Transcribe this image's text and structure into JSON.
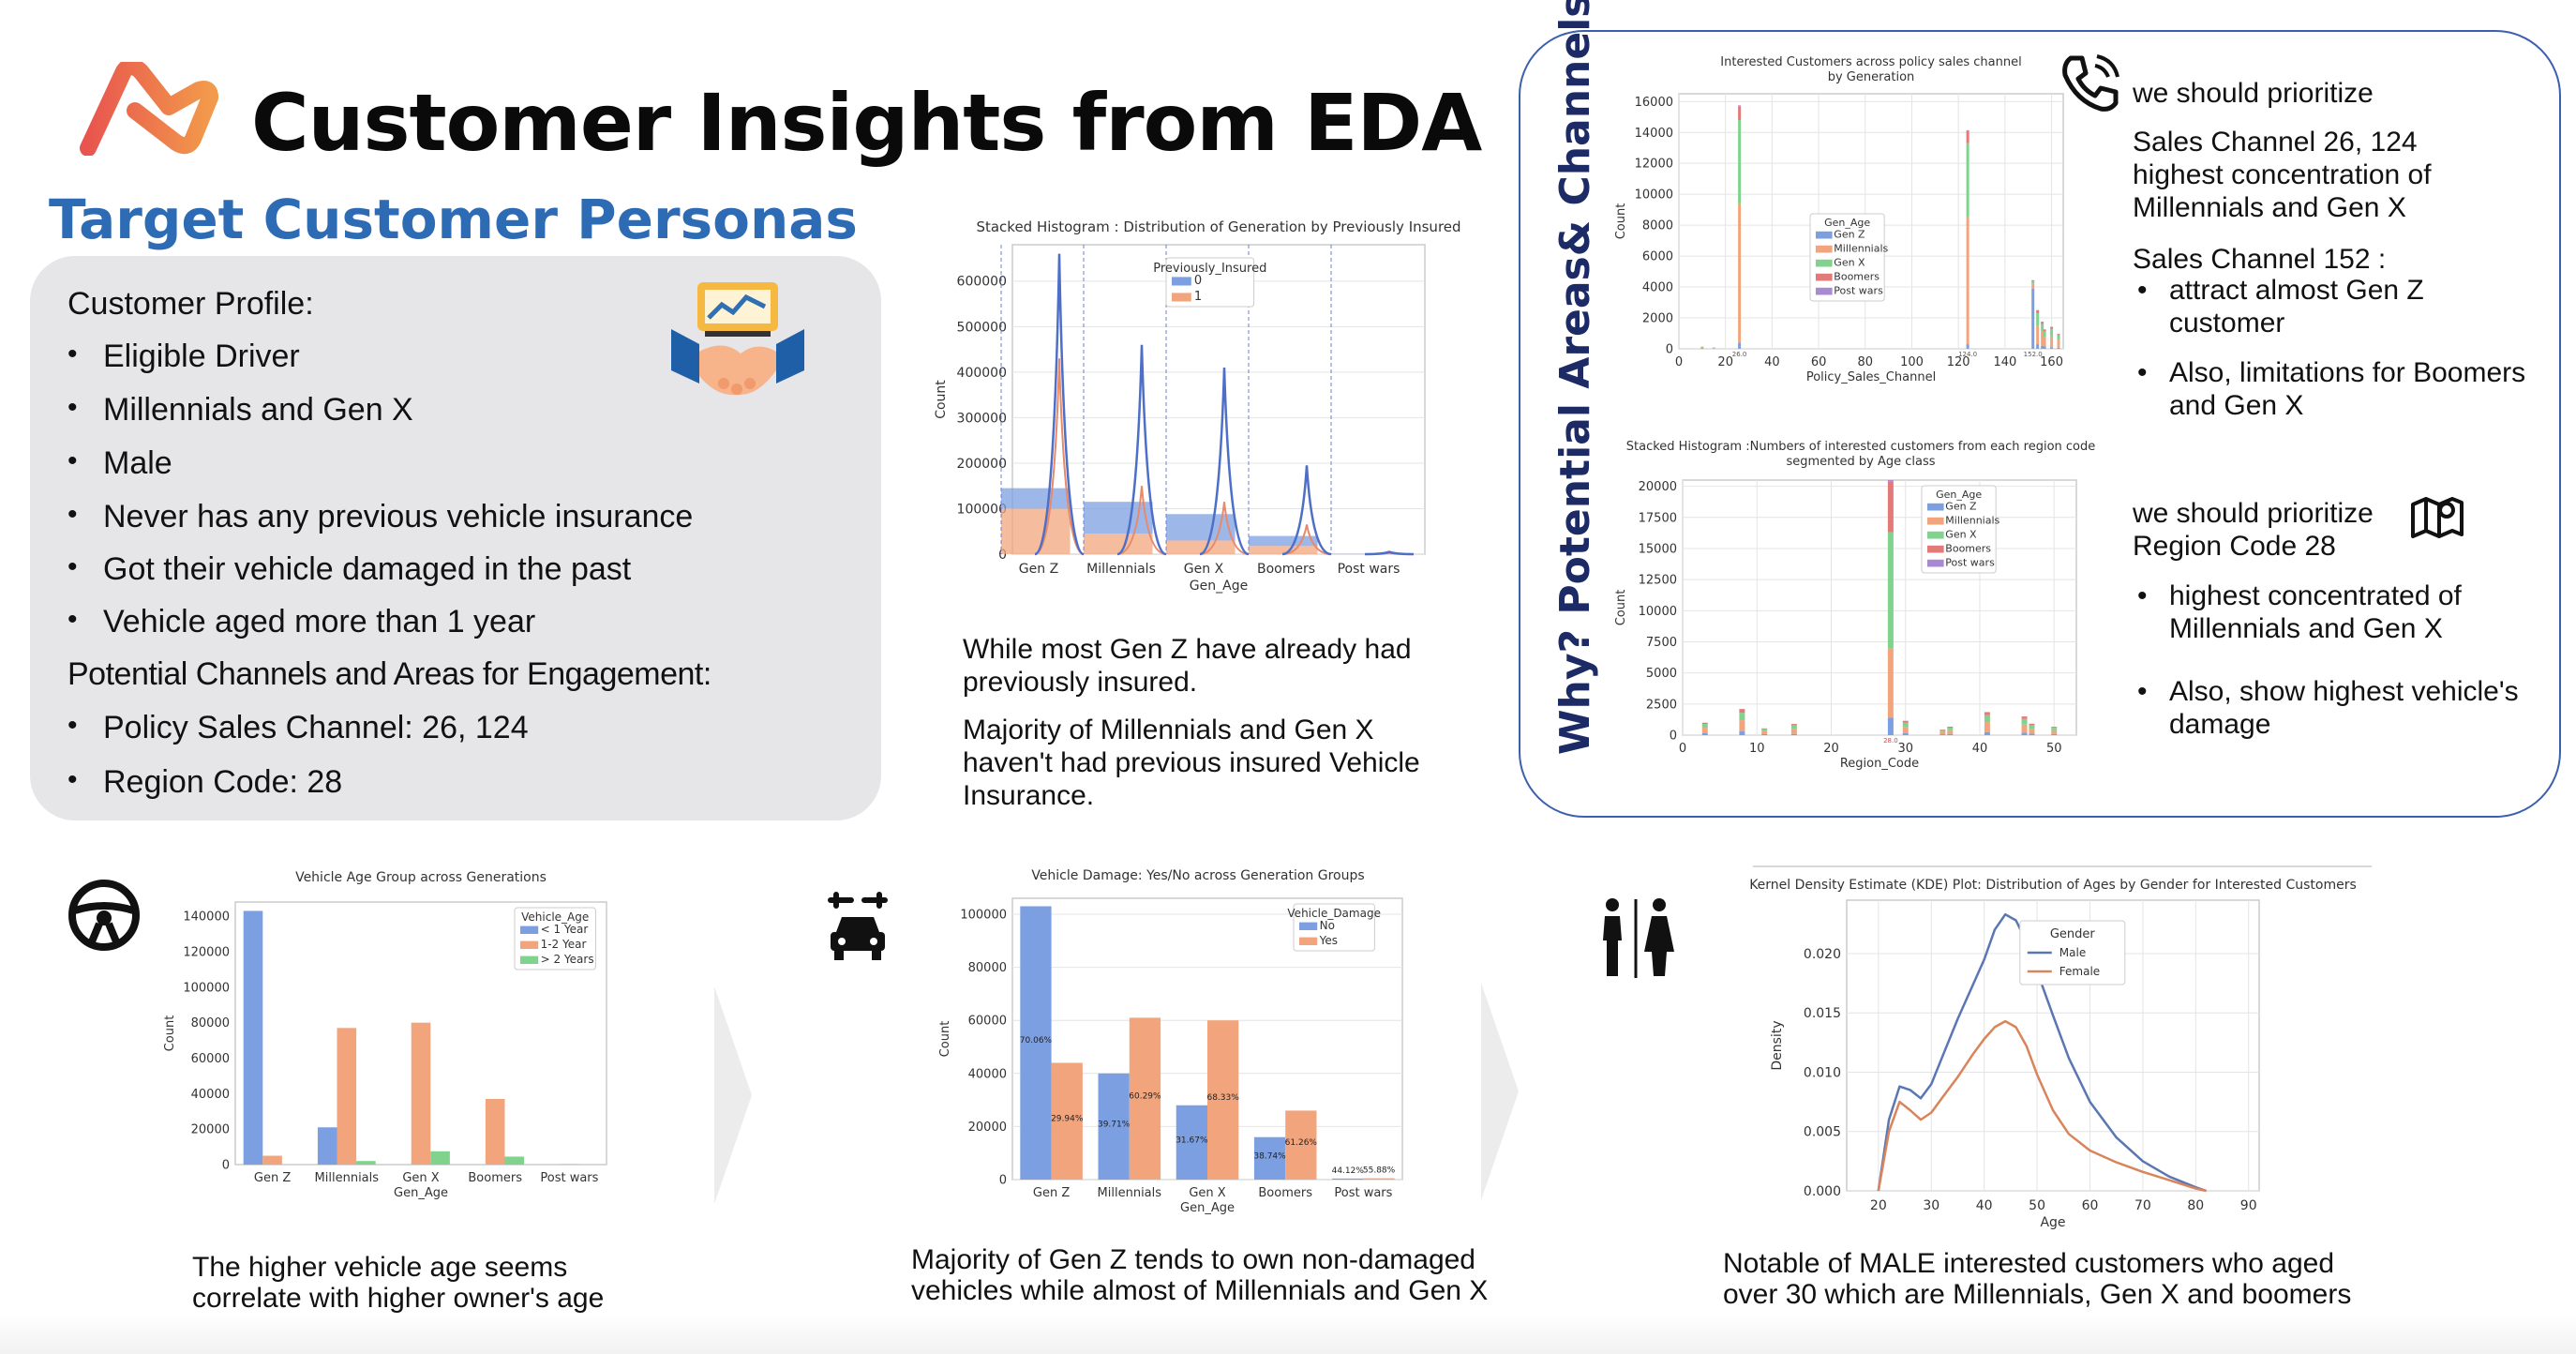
{
  "header": {
    "title": "Customer Insights from EDA",
    "subtitle": "Target Customer Personas"
  },
  "profile": {
    "heading": "Customer Profile:",
    "items": [
      "Eligible Driver",
      "Millennials and Gen X",
      "Male",
      "Never has any previous vehicle insurance",
      "Got their vehicle damaged in the past",
      "Vehicle aged more than 1 year"
    ],
    "channels_heading": "Potential Channels and Areas for Engagement:",
    "channel_items": [
      "Policy Sales Channel: 26, 124",
      "Region Code: 28"
    ]
  },
  "stacked_caption": {
    "p1": "While most Gen Z have already had previously insured.",
    "p2": "Majority of Millennials and Gen X haven't had previous insured Vehicle Insurance."
  },
  "right_panel": {
    "vertical_title": "Why? Potential Areas& Channels",
    "block1": {
      "heading": "we should prioritize",
      "line1": "Sales Channel 26, 124",
      "line2": "highest concentration of",
      "line3": "Millennials and Gen X",
      "sub_heading": "Sales Channel 152 :",
      "bullet1a": "attract almost Gen Z",
      "bullet1b": "customer",
      "bullet2a": "Also, limitations for Boomers",
      "bullet2b": "and Gen X"
    },
    "block2": {
      "heading": "we should prioritize",
      "line1": "Region Code 28",
      "bullet1a": "highest concentrated of",
      "bullet1b": "Millennials and Gen X",
      "bullet2a": "Also, show highest vehicle's",
      "bullet2b": "damage"
    }
  },
  "bottom": {
    "caption1a": "The higher vehicle age seems",
    "caption1b": "correlate with higher owner's age",
    "caption2a": "Majority of Gen Z tends to own non-damaged",
    "caption2b": "vehicles while almost of Millennials and Gen X",
    "caption3a": "Notable of MALE interested customers who aged",
    "caption3b": "over 30 which are Millennials, Gen X and boomers"
  },
  "colors": {
    "blue": "#7b9fe0",
    "orange": "#f2a57d",
    "green": "#7fd38c",
    "red": "#e37a7a",
    "purple": "#a989d4",
    "accent": "#2e6bb5",
    "frame": "#3c5fae"
  },
  "icons": [
    "logo-icon",
    "handshake-chart-icon",
    "phone-icon",
    "map-icon",
    "steering-wheel-icon",
    "car-repair-icon",
    "restroom-icon",
    "chevron-right-icon"
  ],
  "chart_data": [
    {
      "id": "gen-by-insured",
      "type": "bar",
      "title": "Stacked Histogram : Distribution of Generation by Previously Insured",
      "xlabel": "Gen_Age",
      "ylabel": "Count",
      "categories": [
        "Gen Z",
        "Millennials",
        "Gen X",
        "Boomers",
        "Post wars"
      ],
      "legend_title": "Previously_Insured",
      "series": [
        {
          "name": "0",
          "values": [
            45000,
            70000,
            58000,
            22000,
            500
          ]
        },
        {
          "name": "1",
          "values": [
            100000,
            45000,
            30000,
            18000,
            300
          ]
        }
      ],
      "yticks": [
        "0",
        "100000",
        "200000",
        "300000",
        "400000",
        "500000",
        "600000"
      ],
      "ylim": [
        0,
        680000
      ],
      "grid": true,
      "legend": "top-center"
    },
    {
      "id": "channel-by-gen",
      "type": "bar",
      "title": "Interested Customers across policy sales channel",
      "title2": "by Generation",
      "xlabel": "Policy_Sales_Channel",
      "ylabel": "Count",
      "legend_title": "Gen_Age",
      "legend": [
        "Gen Z",
        "Millennials",
        "Gen X",
        "Boomers",
        "Post wars"
      ],
      "xticks": [
        "0",
        "20",
        "40",
        "60",
        "80",
        "100",
        "120",
        "140",
        "160"
      ],
      "yticks": [
        "0",
        "2000",
        "4000",
        "6000",
        "8000",
        "10000",
        "12000",
        "14000",
        "16000"
      ],
      "xlim": [
        0,
        165
      ],
      "ylim": [
        0,
        16500
      ],
      "bars": [
        {
          "x": 26,
          "stack": [
            400,
            9000,
            5400,
            900,
            50
          ]
        },
        {
          "x": 124,
          "stack": [
            300,
            8200,
            4800,
            800,
            40
          ]
        },
        {
          "x": 152,
          "stack": [
            3900,
            300,
            150,
            80,
            10
          ]
        },
        {
          "x": 154,
          "stack": [
            300,
            1200,
            800,
            200,
            10
          ]
        },
        {
          "x": 156,
          "stack": [
            200,
            900,
            500,
            150,
            10
          ]
        },
        {
          "x": 157,
          "stack": [
            150,
            600,
            400,
            100,
            5
          ]
        },
        {
          "x": 160,
          "stack": [
            100,
            700,
            500,
            120,
            5
          ]
        },
        {
          "x": 163,
          "stack": [
            80,
            500,
            300,
            80,
            5
          ]
        },
        {
          "x": 10,
          "stack": [
            30,
            60,
            40,
            10,
            0
          ]
        },
        {
          "x": 15,
          "stack": [
            20,
            40,
            20,
            10,
            0
          ]
        }
      ],
      "minor_labels": [
        "26.0",
        "124.0",
        "152.0"
      ]
    },
    {
      "id": "region-by-age",
      "type": "bar",
      "title": "Stacked Histogram :Numbers of interested customers from each region code",
      "title2": "segmented by Age class",
      "xlabel": "Region_Code",
      "ylabel": "Count",
      "legend_title": "Gen_Age",
      "legend": [
        "Gen Z",
        "Millennials",
        "Gen X",
        "Boomers",
        "Post wars"
      ],
      "xticks": [
        "0",
        "10",
        "20",
        "30",
        "40",
        "50"
      ],
      "yticks": [
        "0",
        "2500",
        "5000",
        "7500",
        "10000",
        "12500",
        "15000",
        "17500",
        "20000"
      ],
      "xlim": [
        0,
        53
      ],
      "ylim": [
        0,
        20500
      ],
      "bars": [
        {
          "x": 28,
          "stack": [
            1400,
            5600,
            9300,
            4100,
            100
          ]
        },
        {
          "x": 8,
          "stack": [
            300,
            900,
            600,
            300,
            0
          ]
        },
        {
          "x": 3,
          "stack": [
            150,
            450,
            300,
            100,
            0
          ]
        },
        {
          "x": 15,
          "stack": [
            100,
            400,
            300,
            100,
            0
          ]
        },
        {
          "x": 30,
          "stack": [
            150,
            500,
            350,
            150,
            0
          ]
        },
        {
          "x": 41,
          "stack": [
            250,
            800,
            550,
            250,
            0
          ]
        },
        {
          "x": 46,
          "stack": [
            200,
            650,
            450,
            200,
            0
          ]
        },
        {
          "x": 36,
          "stack": [
            100,
            300,
            200,
            80,
            0
          ]
        },
        {
          "x": 47,
          "stack": [
            120,
            400,
            280,
            120,
            0
          ]
        },
        {
          "x": 50,
          "stack": [
            90,
            300,
            200,
            80,
            0
          ]
        },
        {
          "x": 11,
          "stack": [
            80,
            250,
            150,
            60,
            0
          ]
        },
        {
          "x": 35,
          "stack": [
            70,
            200,
            130,
            50,
            0
          ]
        }
      ],
      "minor_labels": [
        "28.0"
      ]
    },
    {
      "id": "vehicle-age",
      "type": "bar",
      "title": "Vehicle Age Group across Generations",
      "xlabel": "Gen_Age",
      "ylabel": "Count",
      "categories": [
        "Gen Z",
        "Millennials",
        "Gen X",
        "Boomers",
        "Post wars"
      ],
      "legend_title": "Vehicle_Age",
      "series": [
        {
          "name": "< 1 Year",
          "values": [
            143000,
            21000,
            0,
            0,
            0
          ]
        },
        {
          "name": "1-2 Year",
          "values": [
            5000,
            77000,
            80000,
            37000,
            200
          ]
        },
        {
          "name": "> 2 Years",
          "values": [
            0,
            2000,
            7500,
            4500,
            0
          ]
        }
      ],
      "yticks": [
        "0",
        "20000",
        "40000",
        "60000",
        "80000",
        "100000",
        "120000",
        "140000"
      ],
      "ylim": [
        0,
        148000
      ],
      "legend": "top-right",
      "grid": false
    },
    {
      "id": "vehicle-damage",
      "type": "bar",
      "title": "Vehicle Damage: Yes/No across Generation Groups",
      "xlabel": "Gen_Age",
      "ylabel": "Count",
      "categories": [
        "Gen Z",
        "Millennials",
        "Gen X",
        "Boomers",
        "Post wars"
      ],
      "legend_title": "Vehicle_Damage",
      "series": [
        {
          "name": "No",
          "values": [
            103000,
            40000,
            28000,
            16000,
            400
          ],
          "labels": [
            "70.06%",
            "39.71%",
            "31.67%",
            "38.74%",
            "44.12%"
          ]
        },
        {
          "name": "Yes",
          "values": [
            44000,
            61000,
            60000,
            26000,
            500
          ],
          "labels": [
            "29.94%",
            "60.29%",
            "68.33%",
            "61.26%",
            "55.88%"
          ]
        }
      ],
      "yticks": [
        "0",
        "20000",
        "40000",
        "60000",
        "80000",
        "100000"
      ],
      "ylim": [
        0,
        106000
      ],
      "legend": "top-right",
      "grid": true
    },
    {
      "id": "kde-age-gender",
      "type": "line",
      "title": "Kernel Density Estimate (KDE) Plot: Distribution of Ages by Gender for Interested Customers",
      "xlabel": "Age",
      "ylabel": "Density",
      "legend_title": "Gender",
      "xticks": [
        "20",
        "30",
        "40",
        "50",
        "60",
        "70",
        "80",
        "90"
      ],
      "yticks": [
        "0.000",
        "0.005",
        "0.010",
        "0.015",
        "0.020"
      ],
      "xlim": [
        14,
        92
      ],
      "ylim": [
        0,
        0.0245
      ],
      "grid": true,
      "legend": "top-left",
      "series": [
        {
          "name": "Male",
          "x": [
            20,
            22,
            24,
            26,
            28,
            30,
            32,
            35,
            38,
            40,
            42,
            44,
            46,
            48,
            50,
            53,
            56,
            60,
            65,
            70,
            75,
            80,
            82
          ],
          "y": [
            0.0,
            0.006,
            0.0088,
            0.0085,
            0.0078,
            0.009,
            0.0112,
            0.0145,
            0.0175,
            0.0195,
            0.022,
            0.0233,
            0.0228,
            0.021,
            0.0185,
            0.0148,
            0.0112,
            0.0075,
            0.0045,
            0.0025,
            0.0012,
            0.0003,
            0.0
          ]
        },
        {
          "name": "Female",
          "x": [
            20,
            22,
            24,
            26,
            28,
            30,
            32,
            35,
            38,
            40,
            42,
            44,
            46,
            48,
            50,
            53,
            56,
            60,
            65,
            70,
            75,
            80,
            82
          ],
          "y": [
            0.0,
            0.005,
            0.0075,
            0.0068,
            0.006,
            0.0066,
            0.0078,
            0.0096,
            0.0116,
            0.0128,
            0.0138,
            0.0143,
            0.0138,
            0.0122,
            0.0098,
            0.0068,
            0.0048,
            0.0034,
            0.0024,
            0.0016,
            0.0009,
            0.0002,
            0.0
          ]
        }
      ]
    }
  ]
}
